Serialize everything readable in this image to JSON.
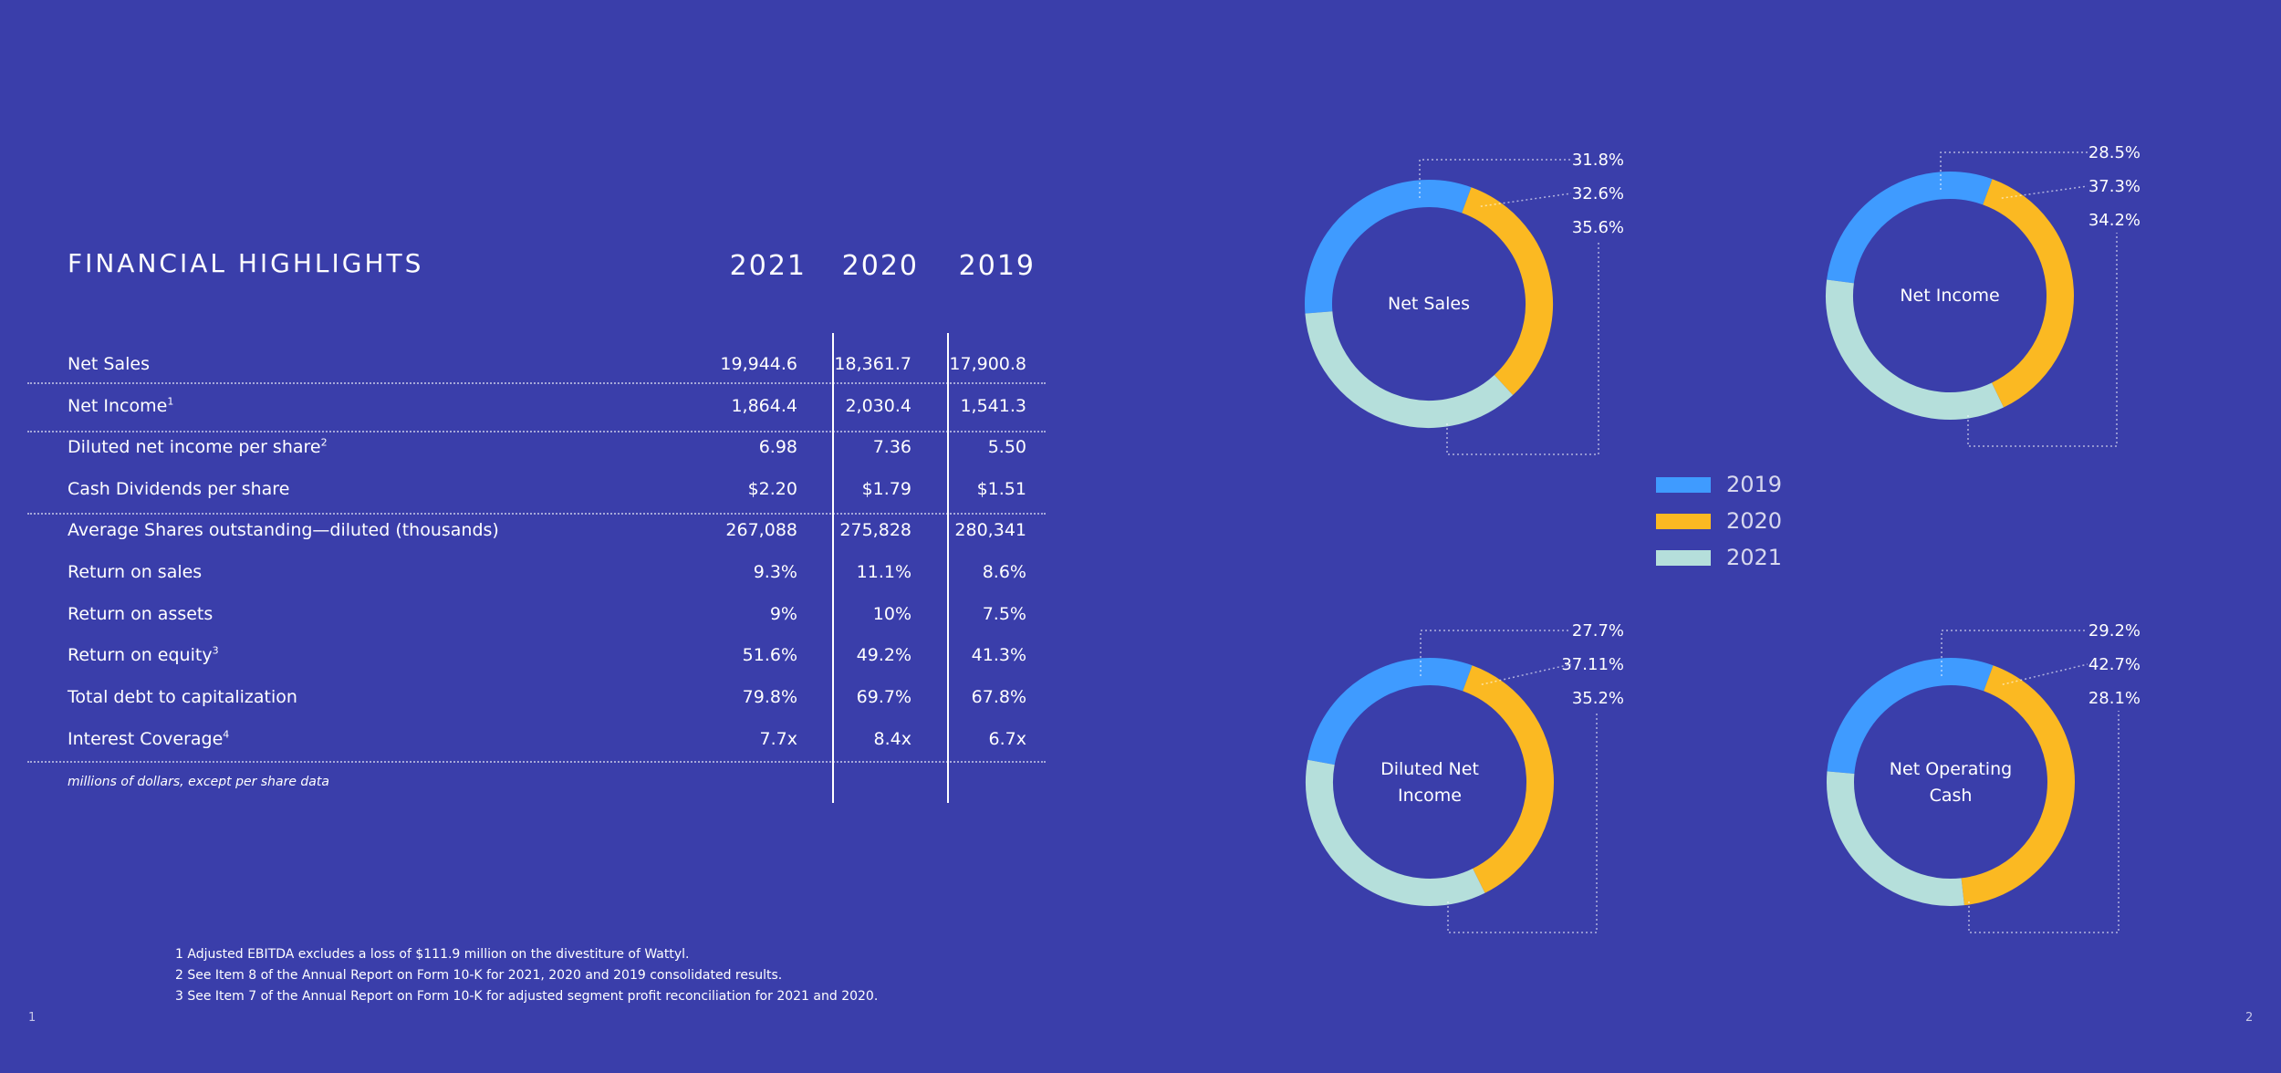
{
  "page": {
    "title": "FINANCIAL HIGHLIGHTS",
    "note": "millions of dollars, except per share data",
    "footnotes": [
      "1 Adjusted EBITDA excludes a loss of $111.9 million on the divestiture of Wattyl.",
      "2 See Item 8 of the Annual Report on Form 10-K for 2021, 2020 and 2019 consolidated results.",
      "3 See Item 7 of the Annual Report on Form 10-K for adjusted segment profit reconciliation for 2021 and 2020."
    ],
    "page_left": "1",
    "page_right": "2"
  },
  "colors": {
    "background": "#3a3eaa",
    "y2019": "#3f9bff",
    "y2020": "#fbb922",
    "y2021": "#b5dfdb"
  },
  "chart_data": [
    {
      "type": "table",
      "title": "FINANCIAL HIGHLIGHTS",
      "columns": [
        "2021",
        "2020",
        "2019"
      ],
      "rows": [
        {
          "label": "Net Sales",
          "sup": "",
          "values": [
            "19,944.6",
            "18,361.7",
            "17,900.8"
          ]
        },
        {
          "label": "Net Income",
          "sup": "1",
          "values": [
            "1,864.4",
            "2,030.4",
            "1,541.3"
          ]
        },
        {
          "label": "Diluted net income per share",
          "sup": "2",
          "values": [
            "6.98",
            "7.36",
            "5.50"
          ]
        },
        {
          "label": "Cash Dividends per share",
          "sup": "",
          "values": [
            "$2.20",
            "$1.79",
            "$1.51"
          ]
        },
        {
          "label": "Average Shares outstanding—diluted (thousands)",
          "sup": "",
          "values": [
            "267,088",
            "275,828",
            "280,341"
          ]
        },
        {
          "label": "Return on sales",
          "sup": "",
          "values": [
            "9.3%",
            "11.1%",
            "8.6%"
          ]
        },
        {
          "label": "Return on assets",
          "sup": "",
          "values": [
            "9%",
            "10%",
            "7.5%"
          ]
        },
        {
          "label": "Return on equity",
          "sup": "3",
          "values": [
            "51.6%",
            "49.2%",
            "41.3%"
          ]
        },
        {
          "label": "Total debt to capitalization",
          "sup": "",
          "values": [
            "79.8%",
            "69.7%",
            "67.8%"
          ]
        },
        {
          "label": "Interest Coverage",
          "sup": "4",
          "values": [
            "7.7x",
            "8.4x",
            "6.7x"
          ]
        }
      ]
    },
    {
      "type": "pie",
      "title": "Net Sales",
      "legend": [
        "2019",
        "2020",
        "2021"
      ],
      "values": [
        31.8,
        32.6,
        35.6
      ],
      "labels": [
        "31.8%",
        "32.6%",
        "35.6%"
      ]
    },
    {
      "type": "pie",
      "title": "Net Income",
      "legend": [
        "2019",
        "2020",
        "2021"
      ],
      "values": [
        28.5,
        37.3,
        34.2
      ],
      "labels": [
        "28.5%",
        "37.3%",
        "34.2%"
      ]
    },
    {
      "type": "pie",
      "title": "Diluted Net Income",
      "legend": [
        "2019",
        "2020",
        "2021"
      ],
      "values": [
        27.7,
        37.11,
        35.2
      ],
      "labels": [
        "27.7%",
        "37.11%",
        "35.2%"
      ]
    },
    {
      "type": "pie",
      "title": "Net Operating Cash",
      "legend": [
        "2019",
        "2020",
        "2021"
      ],
      "values": [
        29.2,
        42.7,
        28.1
      ],
      "labels": [
        "29.2%",
        "42.7%",
        "28.1%"
      ]
    }
  ],
  "legend": [
    "2019",
    "2020",
    "2021"
  ]
}
